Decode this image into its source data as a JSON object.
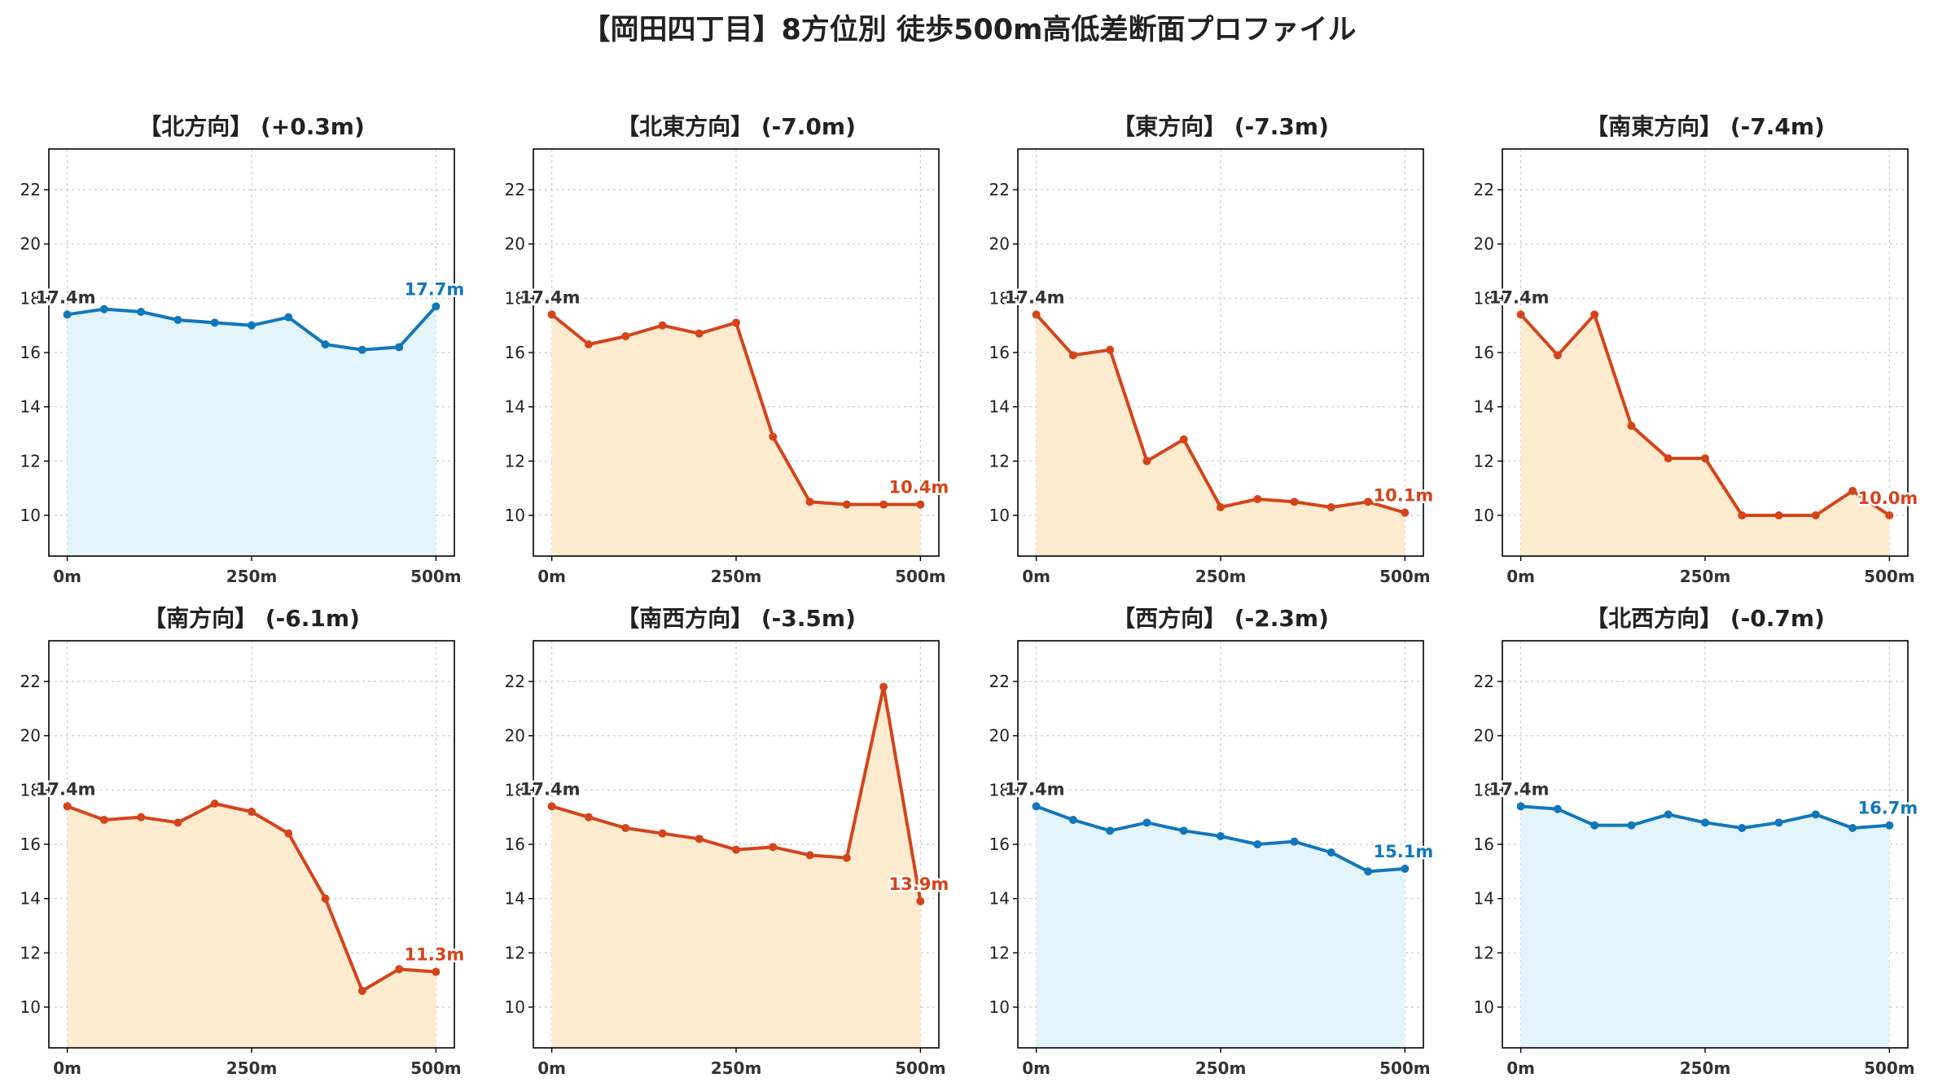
{
  "title": "【岡田四丁目】8方位別 徒歩500m高低差断面プロファイル",
  "colors": {
    "up_line": "#1177bb",
    "up_fill": "#e4f4fb",
    "down_line": "#d4441a",
    "down_fill": "#fdebd0",
    "start_label": "#333333",
    "grid": "#c8c8c8"
  },
  "chart_data": [
    {
      "type": "area",
      "title": "【北方向】 (+0.3m)",
      "trend": "up",
      "x": [
        0,
        50,
        100,
        150,
        200,
        250,
        300,
        350,
        400,
        450,
        500
      ],
      "y": [
        17.4,
        17.6,
        17.5,
        17.2,
        17.1,
        17.0,
        17.3,
        16.3,
        16.1,
        16.2,
        17.7
      ],
      "start_label": "17.4m",
      "end_label": "17.7m",
      "xticks": [
        "0m",
        "250m",
        "500m"
      ],
      "yticks": [
        10,
        12,
        14,
        16,
        18,
        20,
        22
      ],
      "ylim": [
        8.5,
        23.5
      ],
      "xlim": [
        -25,
        525
      ],
      "grid": true
    },
    {
      "type": "area",
      "title": "【北東方向】 (-7.0m)",
      "trend": "down",
      "x": [
        0,
        50,
        100,
        150,
        200,
        250,
        300,
        350,
        400,
        450,
        500
      ],
      "y": [
        17.4,
        16.3,
        16.6,
        17.0,
        16.7,
        17.1,
        12.9,
        10.5,
        10.4,
        10.4,
        10.4
      ],
      "start_label": "17.4m",
      "end_label": "10.4m",
      "xticks": [
        "0m",
        "250m",
        "500m"
      ],
      "yticks": [
        10,
        12,
        14,
        16,
        18,
        20,
        22
      ],
      "ylim": [
        8.5,
        23.5
      ],
      "xlim": [
        -25,
        525
      ],
      "grid": true
    },
    {
      "type": "area",
      "title": "【東方向】 (-7.3m)",
      "trend": "down",
      "x": [
        0,
        50,
        100,
        150,
        200,
        250,
        300,
        350,
        400,
        450,
        500
      ],
      "y": [
        17.4,
        15.9,
        16.1,
        12.0,
        12.8,
        10.3,
        10.6,
        10.5,
        10.3,
        10.5,
        10.1
      ],
      "start_label": "17.4m",
      "end_label": "10.1m",
      "xticks": [
        "0m",
        "250m",
        "500m"
      ],
      "yticks": [
        10,
        12,
        14,
        16,
        18,
        20,
        22
      ],
      "ylim": [
        8.5,
        23.5
      ],
      "xlim": [
        -25,
        525
      ],
      "grid": true
    },
    {
      "type": "area",
      "title": "【南東方向】 (-7.4m)",
      "trend": "down",
      "x": [
        0,
        50,
        100,
        150,
        200,
        250,
        300,
        350,
        400,
        450,
        500
      ],
      "y": [
        17.4,
        15.9,
        17.4,
        13.3,
        12.1,
        12.1,
        10.0,
        10.0,
        10.0,
        10.9,
        10.0
      ],
      "start_label": "17.4m",
      "end_label": "10.0m",
      "xticks": [
        "0m",
        "250m",
        "500m"
      ],
      "yticks": [
        10,
        12,
        14,
        16,
        18,
        20,
        22
      ],
      "ylim": [
        8.5,
        23.5
      ],
      "xlim": [
        -25,
        525
      ],
      "grid": true
    },
    {
      "type": "area",
      "title": "【南方向】 (-6.1m)",
      "trend": "down",
      "x": [
        0,
        50,
        100,
        150,
        200,
        250,
        300,
        350,
        400,
        450,
        500
      ],
      "y": [
        17.4,
        16.9,
        17.0,
        16.8,
        17.5,
        17.2,
        16.4,
        14.0,
        10.6,
        11.4,
        11.3
      ],
      "start_label": "17.4m",
      "end_label": "11.3m",
      "xticks": [
        "0m",
        "250m",
        "500m"
      ],
      "yticks": [
        10,
        12,
        14,
        16,
        18,
        20,
        22
      ],
      "ylim": [
        8.5,
        23.5
      ],
      "xlim": [
        -25,
        525
      ],
      "grid": true
    },
    {
      "type": "area",
      "title": "【南西方向】 (-3.5m)",
      "trend": "down",
      "x": [
        0,
        50,
        100,
        150,
        200,
        250,
        300,
        350,
        400,
        450,
        500
      ],
      "y": [
        17.4,
        17.0,
        16.6,
        16.4,
        16.2,
        15.8,
        15.9,
        15.6,
        15.5,
        21.8,
        13.9
      ],
      "start_label": "17.4m",
      "end_label": "13.9m",
      "xticks": [
        "0m",
        "250m",
        "500m"
      ],
      "yticks": [
        10,
        12,
        14,
        16,
        18,
        20,
        22
      ],
      "ylim": [
        8.5,
        23.5
      ],
      "xlim": [
        -25,
        525
      ],
      "grid": true
    },
    {
      "type": "area",
      "title": "【西方向】 (-2.3m)",
      "trend": "up",
      "x": [
        0,
        50,
        100,
        150,
        200,
        250,
        300,
        350,
        400,
        450,
        500
      ],
      "y": [
        17.4,
        16.9,
        16.5,
        16.8,
        16.5,
        16.3,
        16.0,
        16.1,
        15.7,
        15.0,
        15.1
      ],
      "start_label": "17.4m",
      "end_label": "15.1m",
      "xticks": [
        "0m",
        "250m",
        "500m"
      ],
      "yticks": [
        10,
        12,
        14,
        16,
        18,
        20,
        22
      ],
      "ylim": [
        8.5,
        23.5
      ],
      "xlim": [
        -25,
        525
      ],
      "grid": true
    },
    {
      "type": "area",
      "title": "【北西方向】 (-0.7m)",
      "trend": "up",
      "x": [
        0,
        50,
        100,
        150,
        200,
        250,
        300,
        350,
        400,
        450,
        500
      ],
      "y": [
        17.4,
        17.3,
        16.7,
        16.7,
        17.1,
        16.8,
        16.6,
        16.8,
        17.1,
        16.6,
        16.7
      ],
      "start_label": "17.4m",
      "end_label": "16.7m",
      "xticks": [
        "0m",
        "250m",
        "500m"
      ],
      "yticks": [
        10,
        12,
        14,
        16,
        18,
        20,
        22
      ],
      "ylim": [
        8.5,
        23.5
      ],
      "xlim": [
        -25,
        525
      ],
      "grid": true
    }
  ]
}
